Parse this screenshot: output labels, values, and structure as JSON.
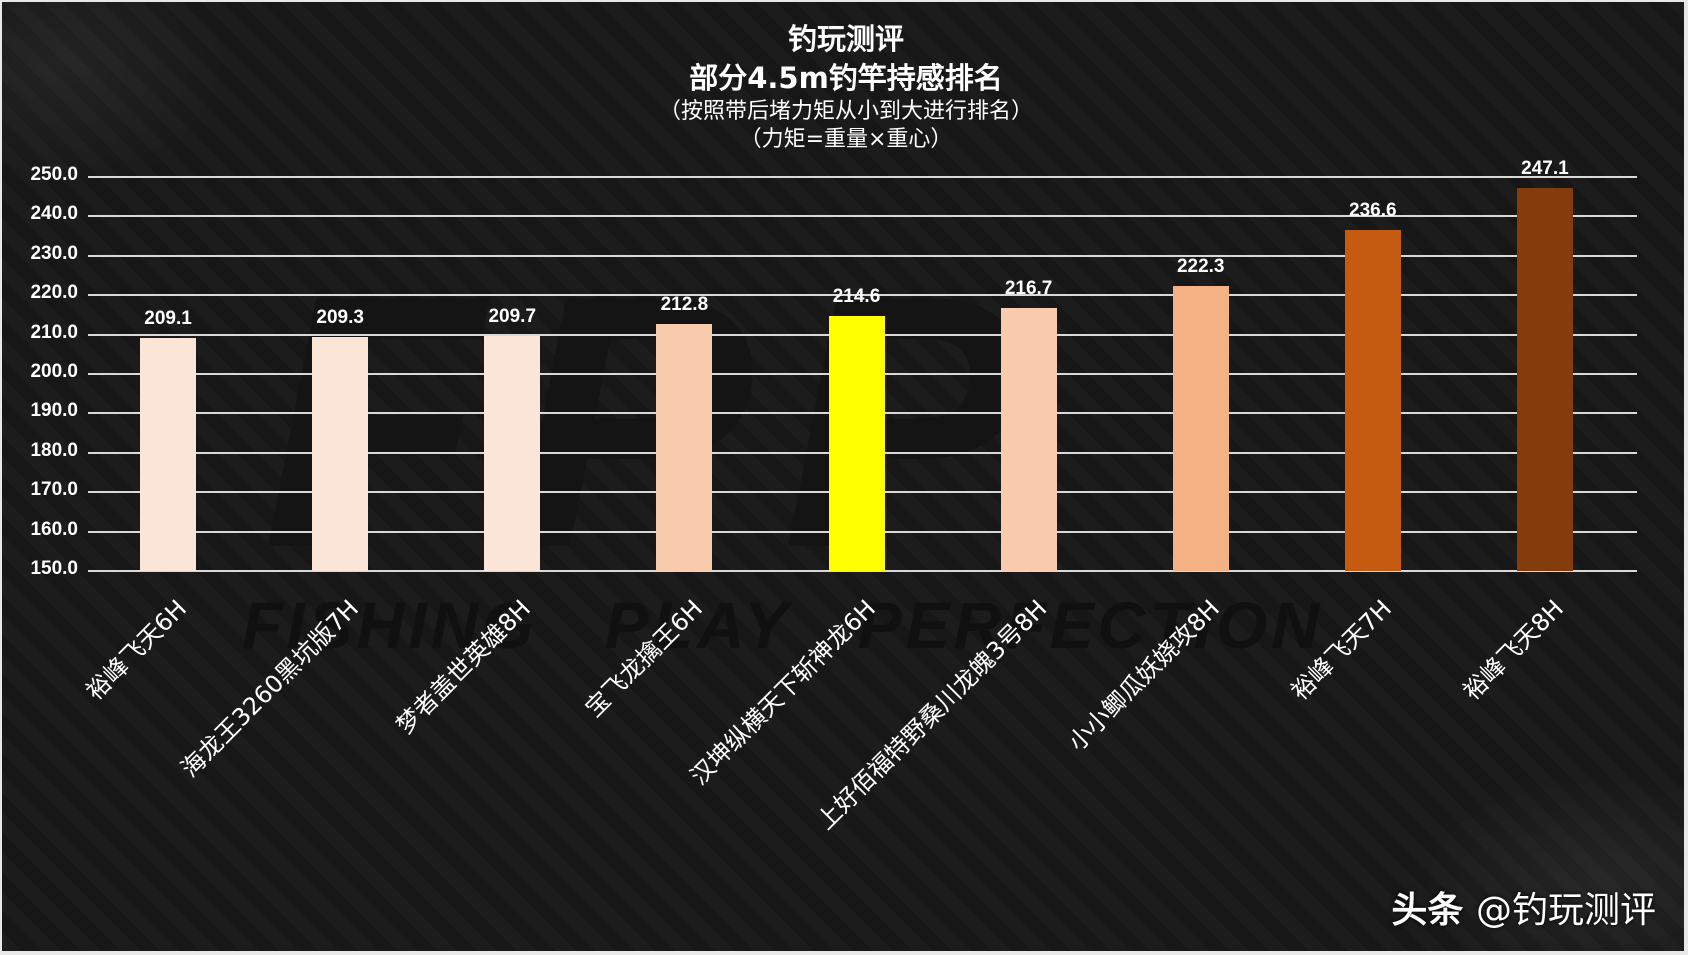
{
  "title": {
    "main": "钓玩测评",
    "sub": "部分4.5m钓竿持感排名",
    "note1": "（按照带后堵力矩从小到大进行排名）",
    "note2": "（力矩=重量×重心）"
  },
  "watermark": {
    "background_text": "FISHING   PLAY   PERFECTION",
    "background_logo": "FPP",
    "brand_prefix": "头条",
    "brand_handle": "@钓玩测评"
  },
  "colors": {
    "background": "#171717",
    "gridline": "#D9D9D9",
    "text": "#FFFFFF",
    "bar_very_light": "#FBE5D6",
    "bar_light": "#F8CBAD",
    "bar_medium": "#F4B183",
    "bar_highlight": "#FFFF00",
    "bar_orange": "#C55A11",
    "bar_brown": "#843C0C"
  },
  "chart_data": {
    "type": "bar",
    "title": "钓玩测评 部分4.5m钓竿持感排名",
    "subtitle": "（按照带后堵力矩从小到大进行排名）（力矩=重量×重心）",
    "xlabel": "",
    "ylabel": "",
    "ylim": [
      150,
      250
    ],
    "yticks": [
      "150.0",
      "160.0",
      "170.0",
      "180.0",
      "190.0",
      "200.0",
      "210.0",
      "220.0",
      "230.0",
      "240.0",
      "250.0"
    ],
    "grid": true,
    "legend": null,
    "categories": [
      "裕峰飞天6H",
      "海龙王3260黑坑版7H",
      "梦者盖世英雄8H",
      "宝飞龙擒王6H",
      "汉坤纵横天下斩神龙6H",
      "上好佰福特野桑川龙魄3号8H",
      "小小鲫瓜妖娆攻8H",
      "裕峰飞天7H",
      "裕峰飞天8H"
    ],
    "values": [
      209.1,
      209.3,
      209.7,
      212.8,
      214.6,
      216.7,
      222.3,
      236.6,
      247.1
    ],
    "value_labels": [
      "209.1",
      "209.3",
      "209.7",
      "212.8",
      "214.6",
      "216.7",
      "222.3",
      "236.6",
      "247.1"
    ],
    "bar_colors": [
      "#FBE5D6",
      "#FBE5D6",
      "#FBE5D6",
      "#F8CBAD",
      "#FFFF00",
      "#F8CBAD",
      "#F4B183",
      "#C55A11",
      "#843C0C"
    ]
  }
}
